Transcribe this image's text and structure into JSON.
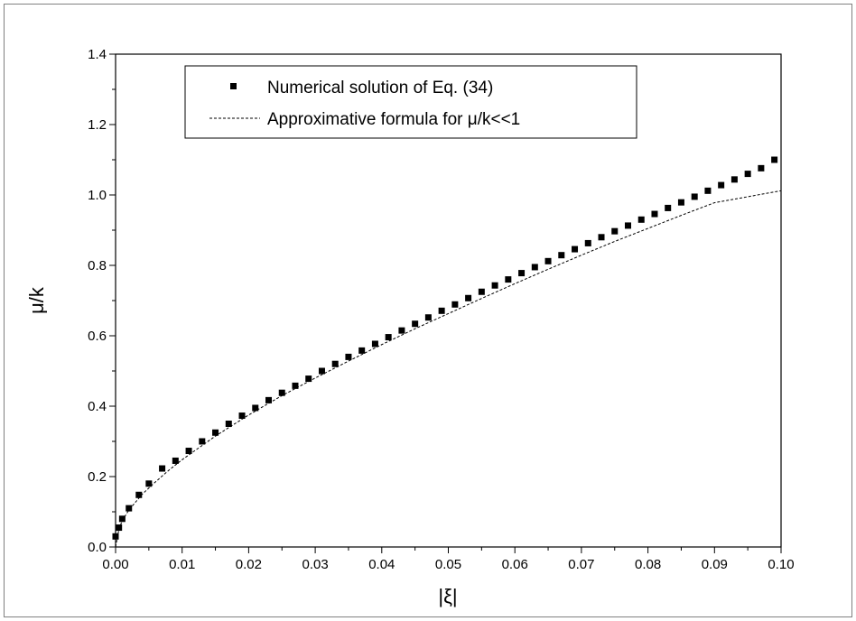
{
  "chart_data": {
    "type": "scatter",
    "xlabel": "|ξ|",
    "ylabel": "μ/k",
    "xlim": [
      0.0,
      0.1
    ],
    "ylim": [
      0.0,
      1.4
    ],
    "x_ticks": [
      "0.00",
      "0.01",
      "0.02",
      "0.03",
      "0.04",
      "0.05",
      "0.06",
      "0.07",
      "0.08",
      "0.09",
      "0.10"
    ],
    "y_ticks": [
      "0.0",
      "0.2",
      "0.4",
      "0.6",
      "0.8",
      "1.0",
      "1.2",
      "1.4"
    ],
    "grid": false,
    "legend_position": "top-left",
    "series": [
      {
        "name": "Numerical solution of Eq. (34)",
        "style": "square-markers",
        "color": "#000000",
        "x": [
          0.0,
          0.0005,
          0.001,
          0.002,
          0.0035,
          0.005,
          0.007,
          0.009,
          0.011,
          0.013,
          0.015,
          0.017,
          0.019,
          0.021,
          0.023,
          0.025,
          0.027,
          0.029,
          0.031,
          0.033,
          0.035,
          0.037,
          0.039,
          0.041,
          0.043,
          0.045,
          0.047,
          0.049,
          0.051,
          0.053,
          0.055,
          0.057,
          0.059,
          0.061,
          0.063,
          0.065,
          0.067,
          0.069,
          0.071,
          0.073,
          0.075,
          0.077,
          0.079,
          0.081,
          0.083,
          0.085,
          0.087,
          0.089,
          0.091,
          0.093,
          0.095,
          0.097,
          0.099
        ],
        "y": [
          0.03,
          0.055,
          0.08,
          0.11,
          0.148,
          0.18,
          0.223,
          0.245,
          0.273,
          0.3,
          0.325,
          0.35,
          0.373,
          0.395,
          0.417,
          0.438,
          0.458,
          0.478,
          0.5,
          0.52,
          0.54,
          0.558,
          0.577,
          0.596,
          0.615,
          0.634,
          0.652,
          0.671,
          0.689,
          0.707,
          0.725,
          0.743,
          0.76,
          0.778,
          0.795,
          0.812,
          0.829,
          0.846,
          0.863,
          0.88,
          0.897,
          0.913,
          0.93,
          0.946,
          0.963,
          0.979,
          0.995,
          1.012,
          1.028,
          1.044,
          1.06,
          1.076,
          1.1
        ]
      },
      {
        "name": "Approximative formula for μ/k<<1",
        "style": "dashed-line",
        "color": "#000000",
        "x": [
          0.0,
          0.0005,
          0.001,
          0.002,
          0.004,
          0.006,
          0.008,
          0.01,
          0.015,
          0.02,
          0.025,
          0.03,
          0.035,
          0.04,
          0.045,
          0.05,
          0.055,
          0.06,
          0.065,
          0.07,
          0.075,
          0.08,
          0.085,
          0.09,
          0.095,
          0.1
        ],
        "y": [
          0.0,
          0.05,
          0.075,
          0.105,
          0.15,
          0.185,
          0.218,
          0.248,
          0.315,
          0.375,
          0.43,
          0.48,
          0.528,
          0.575,
          0.62,
          0.663,
          0.706,
          0.748,
          0.789,
          0.829,
          0.868,
          0.905,
          0.942,
          0.978,
          0.995,
          1.012
        ]
      }
    ]
  }
}
